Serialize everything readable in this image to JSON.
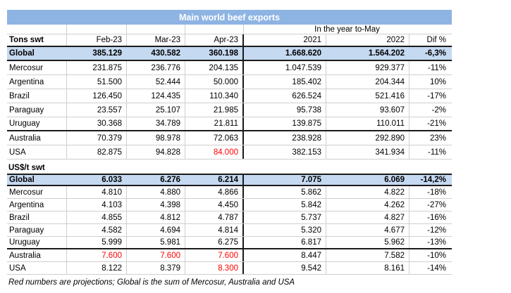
{
  "title": "Main world beef exports",
  "span_header": "In the year to-May",
  "columns": [
    "Tons swt",
    "Feb-23",
    "Mar-23",
    "Apr-23",
    "2021",
    "2022",
    "Dif %"
  ],
  "section2_label": "US$/t swt",
  "footnote": "Red numbers are projections; Global is the sum of Mercosur, Australia and USA",
  "colors": {
    "title_bg": "#8EB4E3",
    "title_text": "#FFFFFF",
    "global_row_bg": "#C5D9F1",
    "projection_red": "#FF0000",
    "gridline": "#CFCFCF",
    "strong_border": "#1A1A1A"
  },
  "sections": [
    {
      "name": "tons_swt",
      "rows": [
        {
          "label": "Global",
          "values": [
            "385.129",
            "430.582",
            "360.198",
            "1.668.620",
            "1.564.202",
            "-6,3%"
          ],
          "style": "global"
        },
        {
          "label": "Mercosur",
          "values": [
            "231.875",
            "236.776",
            "204.135",
            "1.047.539",
            "929.377",
            "-11%"
          ]
        },
        {
          "label": "Argentina",
          "values": [
            "51.500",
            "52.444",
            "50.000",
            "185.402",
            "204.344",
            "10%"
          ]
        },
        {
          "label": "Brazil",
          "values": [
            "126.450",
            "124.435",
            "110.340",
            "626.524",
            "521.416",
            "-17%"
          ]
        },
        {
          "label": "Paraguay",
          "values": [
            "23.557",
            "25.107",
            "21.985",
            "95.738",
            "93.607",
            "-2%"
          ]
        },
        {
          "label": "Uruguay",
          "values": [
            "30.368",
            "34.789",
            "21.811",
            "139.875",
            "110.011",
            "-21%"
          ],
          "thick_bottom": true
        },
        {
          "label": "Australia",
          "values": [
            "70.379",
            "98.978",
            "72.063",
            "238.928",
            "292.890",
            "23%"
          ]
        },
        {
          "label": "USA",
          "values": [
            "82.875",
            "94.828",
            "84.000",
            "382.153",
            "341.934",
            "-11%"
          ],
          "red": [
            2
          ]
        }
      ]
    },
    {
      "name": "usd_per_t_swt",
      "rows": [
        {
          "label": "Global",
          "values": [
            "6.033",
            "6.276",
            "6.214",
            "7.075",
            "6.069",
            "-14,2%"
          ],
          "style": "global"
        },
        {
          "label": "Mercosur",
          "values": [
            "4.810",
            "4.880",
            "4.866",
            "5.862",
            "4.822",
            "-18%"
          ]
        },
        {
          "label": "Argentina",
          "values": [
            "4.103",
            "4.398",
            "4.450",
            "5.842",
            "4.262",
            "-27%"
          ]
        },
        {
          "label": "Brazil",
          "values": [
            "4.855",
            "4.812",
            "4.787",
            "5.737",
            "4.827",
            "-16%"
          ]
        },
        {
          "label": "Paraguay",
          "values": [
            "4.582",
            "4.694",
            "4.814",
            "5.320",
            "4.677",
            "-12%"
          ]
        },
        {
          "label": "Uruguay",
          "values": [
            "5.999",
            "5.981",
            "6.275",
            "6.817",
            "5.962",
            "-13%"
          ],
          "thick_bottom": true
        },
        {
          "label": "Australia",
          "values": [
            "7.600",
            "7.600",
            "7.600",
            "8.447",
            "7.582",
            "-10%"
          ],
          "red": [
            0,
            1,
            2
          ]
        },
        {
          "label": "USA",
          "values": [
            "8.122",
            "8.379",
            "8.300",
            "9.542",
            "8.161",
            "-14%"
          ],
          "red": [
            2
          ]
        }
      ]
    }
  ]
}
